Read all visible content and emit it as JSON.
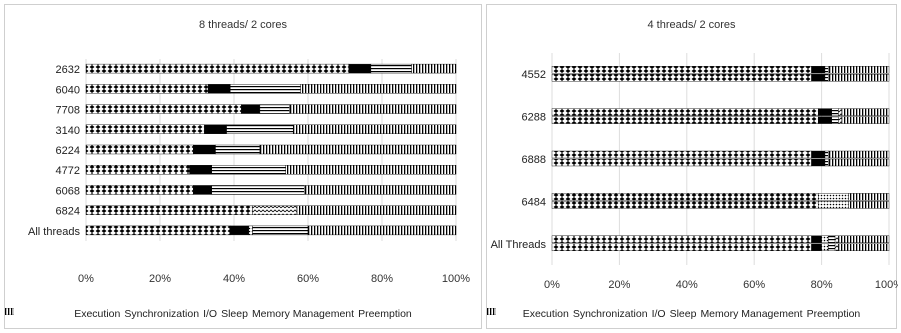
{
  "chart_data": [
    {
      "type": "bar",
      "orientation": "horizontal",
      "stacked": true,
      "title": "8 threads/ 2 cores",
      "categories": [
        "2632",
        "6040",
        "7708",
        "3140",
        "6224",
        "4772",
        "6068",
        "6824",
        "All threads"
      ],
      "xticks": [
        "0%",
        "20%",
        "40%",
        "60%",
        "80%",
        "100%"
      ],
      "xlim": [
        0,
        100
      ],
      "bars_per_category": 1,
      "series": [
        {
          "name": "Execution",
          "values": [
            71,
            33,
            42,
            32,
            29,
            28,
            29,
            45,
            39
          ]
        },
        {
          "name": "Synchronization",
          "values": [
            6,
            6,
            5,
            6,
            6,
            6,
            5,
            0,
            5
          ]
        },
        {
          "name": "I/O",
          "values": [
            0,
            0,
            0,
            0,
            0,
            0,
            0,
            0,
            1
          ]
        },
        {
          "name": "Sleep",
          "values": [
            11,
            19,
            8,
            18,
            12,
            20,
            25,
            0,
            15
          ]
        },
        {
          "name": "Memory Management",
          "values": [
            0,
            0,
            0,
            0,
            0,
            0,
            0,
            12,
            0
          ]
        },
        {
          "name": "Preemption",
          "values": [
            12,
            42,
            45,
            44,
            53,
            46,
            41,
            43,
            40
          ]
        }
      ],
      "legend_position": "bottom"
    },
    {
      "type": "bar",
      "orientation": "horizontal",
      "stacked": true,
      "title": "4 threads/ 2 cores",
      "categories": [
        "4552",
        "6288",
        "6888",
        "6484",
        "All Threads"
      ],
      "xticks": [
        "0%",
        "20%",
        "40%",
        "60%",
        "80%",
        "100%"
      ],
      "xlim": [
        0,
        100
      ],
      "bars_per_category": 2,
      "series": [
        {
          "name": "Execution",
          "values": [
            77,
            79,
            77,
            79,
            77
          ]
        },
        {
          "name": "Synchronization",
          "values": [
            4,
            4,
            4,
            0,
            3
          ]
        },
        {
          "name": "I/O",
          "values": [
            0,
            0,
            0,
            9,
            2
          ]
        },
        {
          "name": "Sleep",
          "values": [
            1,
            2,
            1,
            0,
            2
          ]
        },
        {
          "name": "Memory Management",
          "values": [
            0,
            1,
            0,
            0,
            1
          ]
        },
        {
          "name": "Preemption",
          "values": [
            18,
            14,
            18,
            12,
            15
          ]
        }
      ],
      "legend_position": "bottom"
    }
  ]
}
